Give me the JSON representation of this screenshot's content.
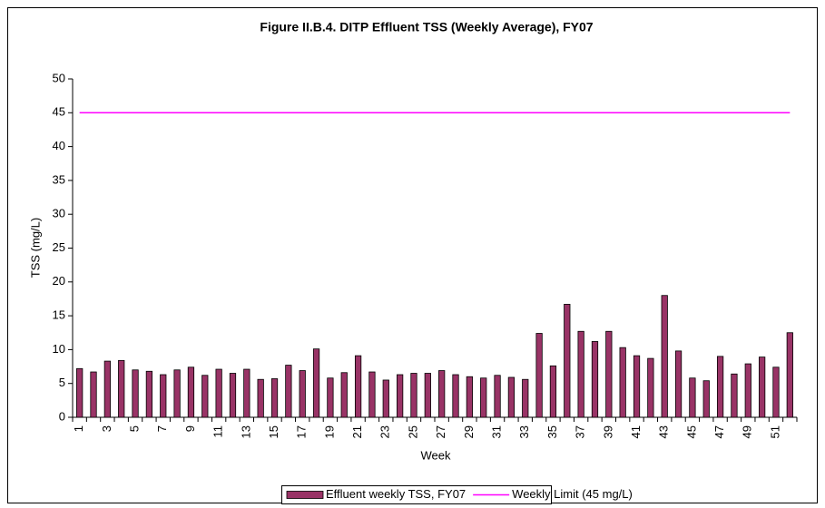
{
  "chart_data": {
    "type": "bar",
    "title": "Figure II.B.4.  DITP Effluent TSS (Weekly Average), FY07",
    "x_label": "Week",
    "y_label": "TSS (mg/L)",
    "categories": [
      "1",
      null,
      "3",
      null,
      "5",
      null,
      "7",
      null,
      "9",
      null,
      "11",
      null,
      "13",
      null,
      "15",
      null,
      "17",
      null,
      "19",
      null,
      "21",
      null,
      "23",
      null,
      "25",
      null,
      "27",
      null,
      "29",
      null,
      "31",
      null,
      "33",
      null,
      "35",
      null,
      "37",
      null,
      "39",
      null,
      "41",
      null,
      "43",
      null,
      "45",
      null,
      "47",
      null,
      "49",
      null,
      "51",
      null
    ],
    "series": [
      {
        "name": "Effluent weekly TSS, FY07",
        "color": "#993366",
        "type": "bar",
        "values": [
          7.2,
          6.7,
          8.3,
          8.4,
          7.0,
          6.8,
          6.3,
          7.0,
          7.4,
          6.2,
          7.1,
          6.5,
          7.1,
          5.6,
          5.7,
          7.7,
          6.9,
          10.1,
          5.8,
          6.6,
          9.1,
          6.7,
          5.5,
          6.3,
          6.5,
          6.5,
          6.9,
          6.3,
          6.0,
          5.8,
          6.2,
          5.9,
          5.6,
          12.4,
          7.6,
          16.7,
          12.7,
          11.2,
          12.7,
          10.3,
          9.1,
          8.7,
          18.0,
          9.8,
          5.8,
          5.4,
          9.0,
          6.4,
          7.9,
          8.9,
          7.4,
          12.5
        ]
      },
      {
        "name": "Weekly Limit (45 mg/L)",
        "color": "#ff00ff",
        "type": "line",
        "values": [
          45,
          45,
          45,
          45,
          45,
          45,
          45,
          45,
          45,
          45,
          45,
          45,
          45,
          45,
          45,
          45,
          45,
          45,
          45,
          45,
          45,
          45,
          45,
          45,
          45,
          45,
          45,
          45,
          45,
          45,
          45,
          45,
          45,
          45,
          45,
          45,
          45,
          45,
          45,
          45,
          45,
          45,
          45,
          45,
          45,
          45,
          45,
          45,
          45,
          45,
          45,
          45
        ]
      }
    ],
    "ylim": [
      0,
      50
    ],
    "yticks": [
      0,
      5,
      10,
      15,
      20,
      25,
      30,
      35,
      40,
      45,
      50
    ],
    "grid": false,
    "legend": "bottom"
  }
}
